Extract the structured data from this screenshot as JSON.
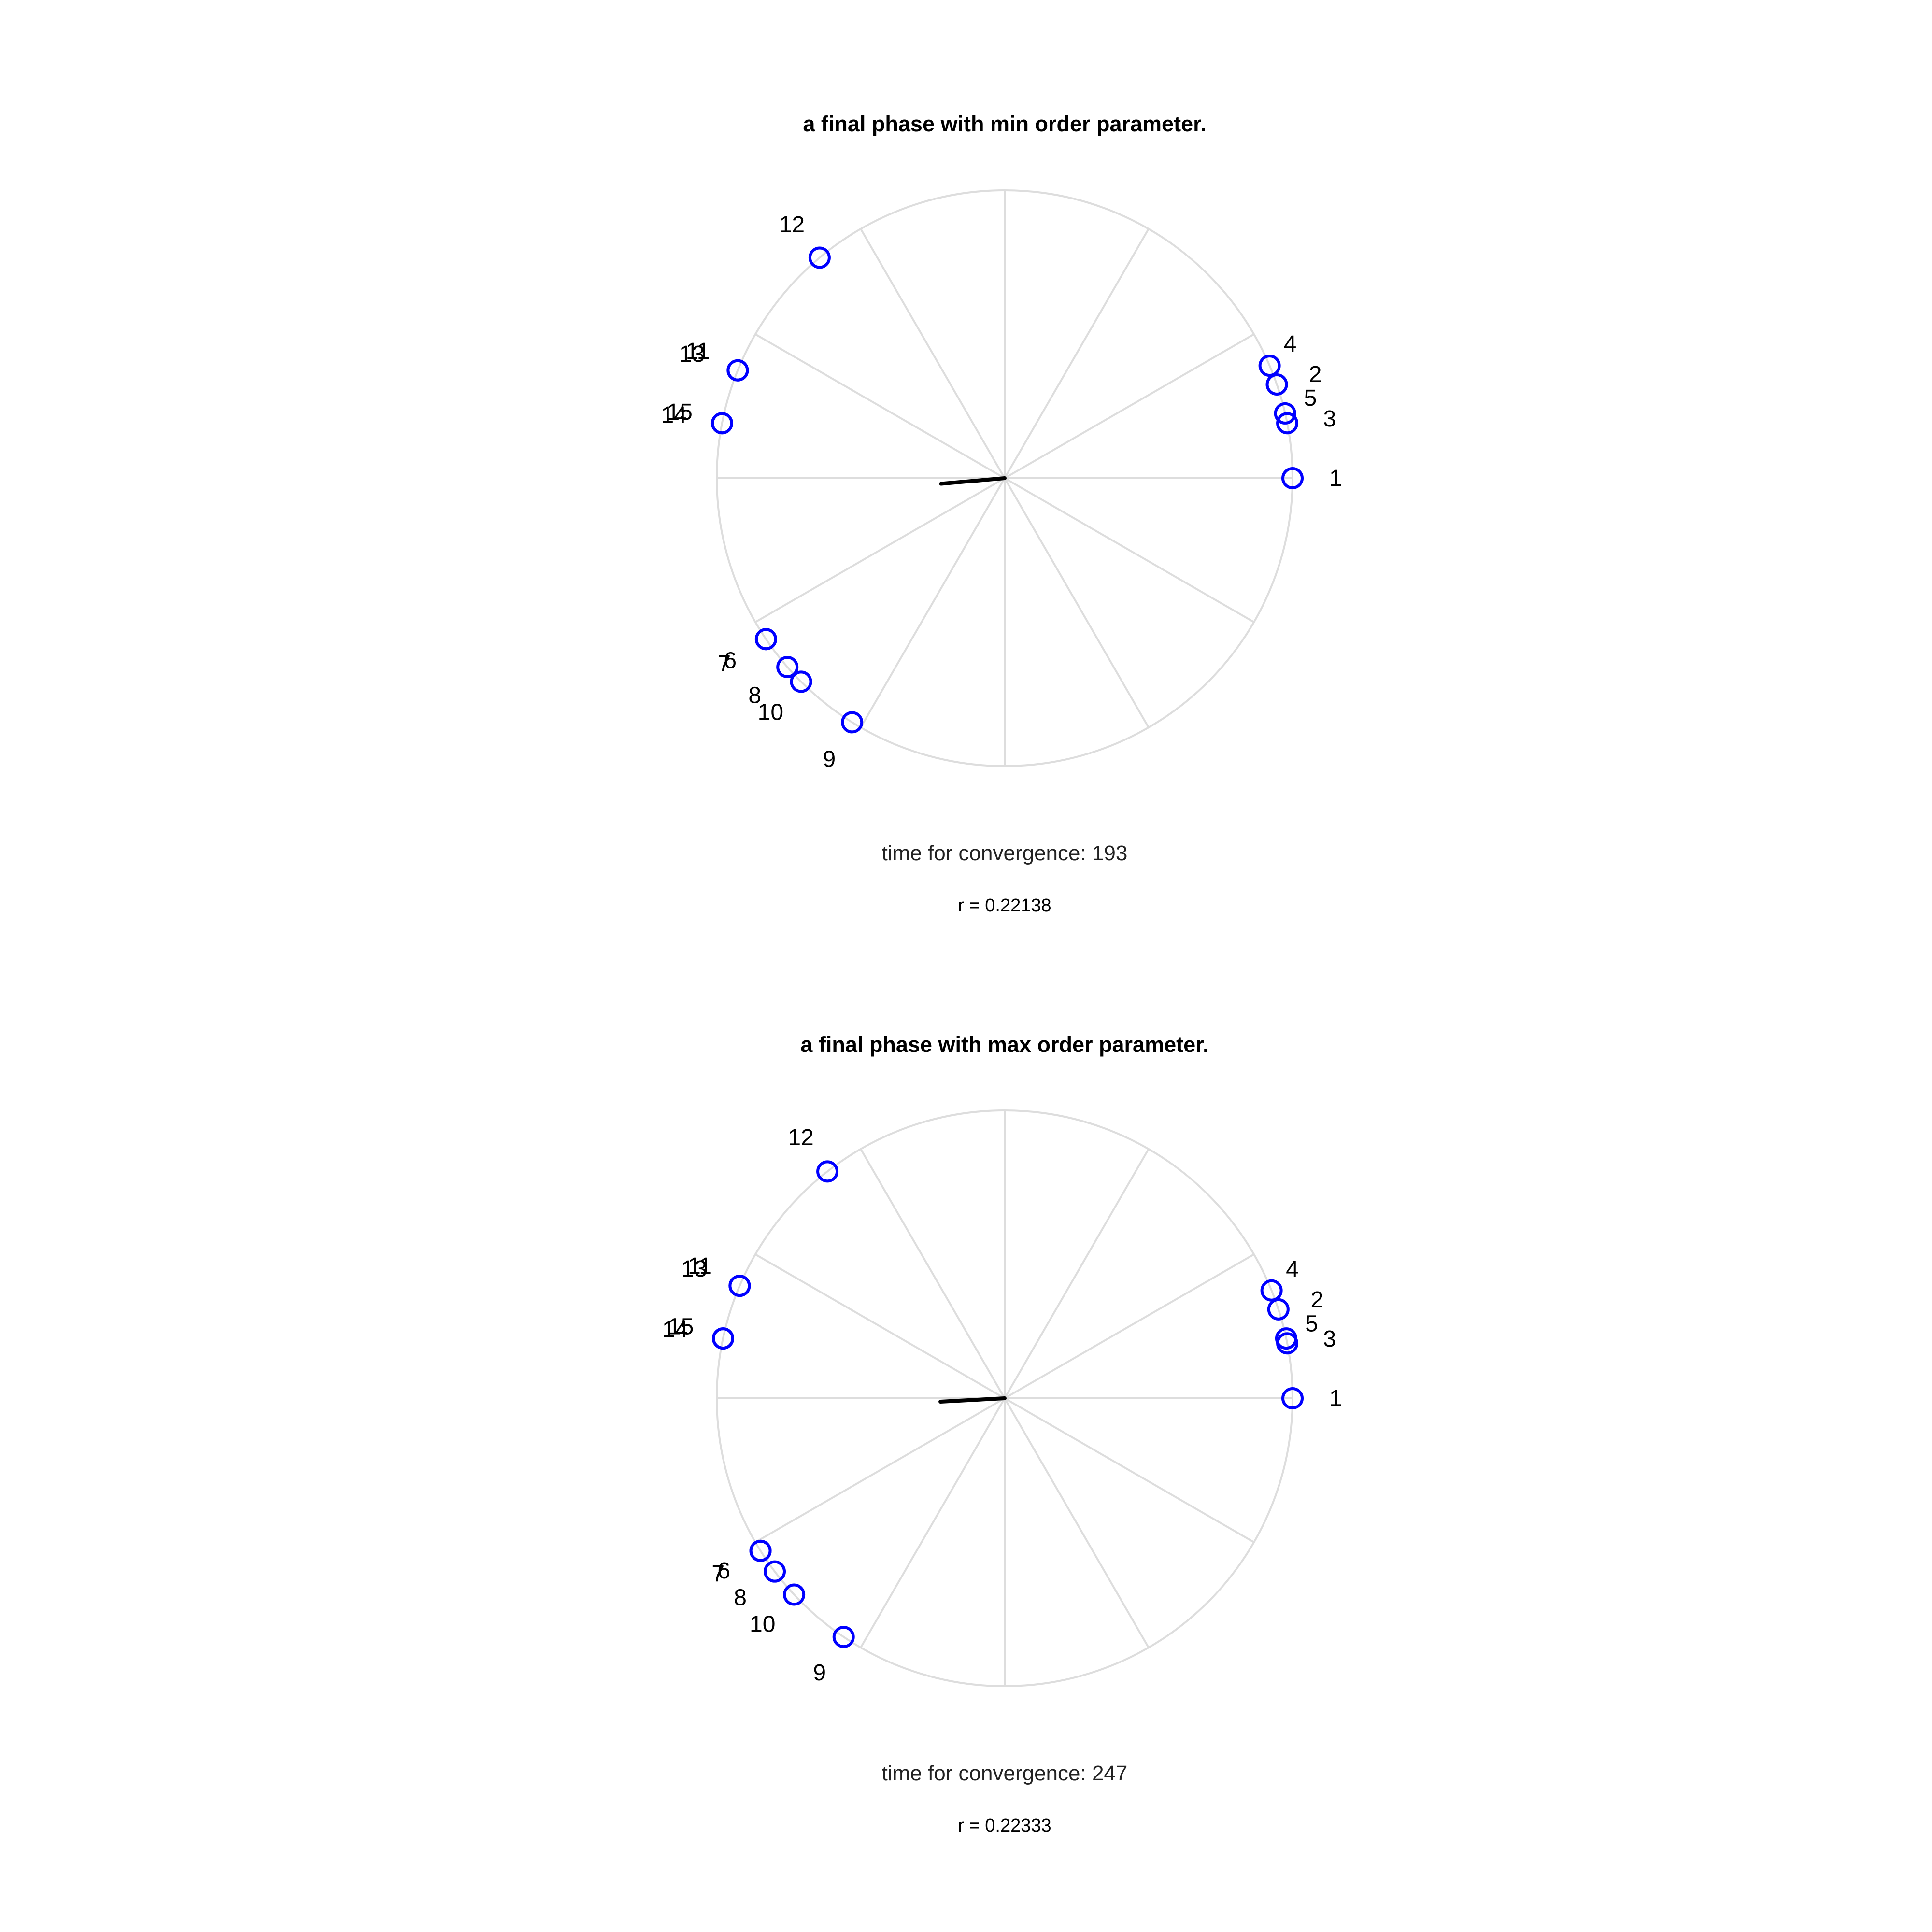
{
  "chart_data": [
    {
      "type": "scatter",
      "projection": "polar",
      "title": "a final phase with min order parameter.",
      "convergence_label": "time for convergence: 193",
      "order_parameter_label": "r = 0.22138",
      "radial_grid_spokes_deg": [
        0,
        30,
        60,
        90,
        120,
        150,
        180,
        210,
        240,
        270,
        300,
        330
      ],
      "points": [
        {
          "label": "1",
          "angle_deg": 0,
          "r": 1
        },
        {
          "label": "2",
          "angle_deg": 19,
          "r": 1
        },
        {
          "label": "3",
          "angle_deg": 11,
          "r": 1
        },
        {
          "label": "4",
          "angle_deg": 23,
          "r": 1
        },
        {
          "label": "5",
          "angle_deg": 13,
          "r": 1
        },
        {
          "label": "6",
          "angle_deg": 214,
          "r": 1
        },
        {
          "label": "7",
          "angle_deg": 214,
          "r": 1
        },
        {
          "label": "8",
          "angle_deg": 221,
          "r": 1
        },
        {
          "label": "9",
          "angle_deg": 238,
          "r": 1
        },
        {
          "label": "10",
          "angle_deg": 225,
          "r": 1
        },
        {
          "label": "11",
          "angle_deg": 158,
          "r": 1
        },
        {
          "label": "12",
          "angle_deg": 130,
          "r": 1
        },
        {
          "label": "13",
          "angle_deg": 158,
          "r": 1
        },
        {
          "label": "14",
          "angle_deg": 169,
          "r": 1
        },
        {
          "label": "15",
          "angle_deg": 169,
          "r": 1
        }
      ],
      "order_vector": {
        "r": 0.22138,
        "angle_deg": 185
      },
      "marker_color": "#0000ff",
      "vector_color": "#000000",
      "grid_color": "#dddddd"
    },
    {
      "type": "scatter",
      "projection": "polar",
      "title": "a final phase with max order parameter.",
      "convergence_label": "time for convergence: 247",
      "order_parameter_label": "r = 0.22333",
      "radial_grid_spokes_deg": [
        0,
        30,
        60,
        90,
        120,
        150,
        180,
        210,
        240,
        270,
        300,
        330
      ],
      "points": [
        {
          "label": "1",
          "angle_deg": 0,
          "r": 1
        },
        {
          "label": "2",
          "angle_deg": 18,
          "r": 1
        },
        {
          "label": "3",
          "angle_deg": 11,
          "r": 1
        },
        {
          "label": "4",
          "angle_deg": 22,
          "r": 1
        },
        {
          "label": "5",
          "angle_deg": 12,
          "r": 1
        },
        {
          "label": "6",
          "angle_deg": 212,
          "r": 1
        },
        {
          "label": "7",
          "angle_deg": 212,
          "r": 1
        },
        {
          "label": "8",
          "angle_deg": 217,
          "r": 1
        },
        {
          "label": "9",
          "angle_deg": 236,
          "r": 1
        },
        {
          "label": "10",
          "angle_deg": 223,
          "r": 1
        },
        {
          "label": "11",
          "angle_deg": 157,
          "r": 1
        },
        {
          "label": "12",
          "angle_deg": 128,
          "r": 1
        },
        {
          "label": "13",
          "angle_deg": 157,
          "r": 1
        },
        {
          "label": "14",
          "angle_deg": 168,
          "r": 1
        },
        {
          "label": "15",
          "angle_deg": 168,
          "r": 1
        }
      ],
      "order_vector": {
        "r": 0.22333,
        "angle_deg": 183
      },
      "marker_color": "#0000ff",
      "vector_color": "#000000",
      "grid_color": "#dddddd"
    }
  ]
}
